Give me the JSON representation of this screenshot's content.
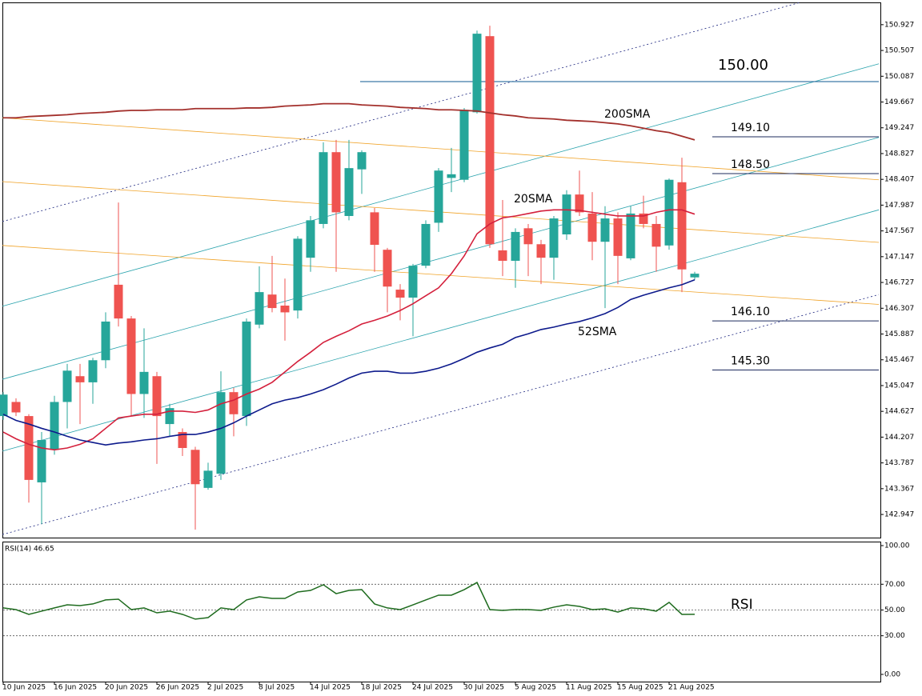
{
  "chart_data": [
    {
      "type": "candlestick",
      "categories": [
        "10 Jun 2025",
        null,
        null,
        null,
        "16 Jun 2025",
        null,
        null,
        null,
        "20 Jun 2025",
        null,
        null,
        null,
        "26 Jun 2025",
        null,
        null,
        null,
        "2 Jul 2025",
        null,
        null,
        null,
        "8 Jul 2025",
        null,
        null,
        null,
        "14 Jul 2025",
        null,
        null,
        null,
        "18 Jul 2025",
        null,
        null,
        null,
        "24 Jul 2025",
        null,
        null,
        null,
        "30 Jul 2025",
        null,
        null,
        null,
        "5 Aug 2025",
        null,
        null,
        null,
        "11 Aug 2025",
        null,
        null,
        null,
        "15 Aug 2025",
        null,
        null,
        null,
        "21 Aug 2025",
        null,
        null
      ],
      "open": [
        144.55,
        144.78,
        144.55,
        143.47,
        144.0,
        144.78,
        145.2,
        145.1,
        145.46,
        146.69,
        146.14,
        144.91,
        145.2,
        144.42,
        144.29,
        144.0,
        143.38,
        143.61,
        144.94,
        144.55,
        146.04,
        146.53,
        146.35,
        146.27,
        147.13,
        147.68,
        148.85,
        147.81,
        148.57,
        147.87,
        147.26,
        146.61,
        146.48,
        147.0,
        147.7,
        148.43,
        148.4,
        149.5,
        150.74,
        147.25,
        147.08,
        147.61,
        147.35,
        147.13,
        147.51,
        148.16,
        147.85,
        147.39,
        147.77,
        147.12,
        147.85,
        147.68,
        147.33,
        148.36,
        146.81
      ],
      "high": [
        144.94,
        144.84,
        144.58,
        144.29,
        144.88,
        145.4,
        145.4,
        145.5,
        146.24,
        148.03,
        146.18,
        145.98,
        145.27,
        144.75,
        144.35,
        144.05,
        143.79,
        145.28,
        145.01,
        146.14,
        146.99,
        147.16,
        146.79,
        147.48,
        147.81,
        149.01,
        149.05,
        149.05,
        148.88,
        147.94,
        147.29,
        146.7,
        147.03,
        147.74,
        148.59,
        148.92,
        149.57,
        150.83,
        150.91,
        148.07,
        147.61,
        147.68,
        147.42,
        147.81,
        148.23,
        148.55,
        148.2,
        147.97,
        147.87,
        147.97,
        148.14,
        147.81,
        148.42,
        148.76,
        146.9
      ],
      "low": [
        144.49,
        144.55,
        143.14,
        142.79,
        143.92,
        144.35,
        144.42,
        144.75,
        145.33,
        146.01,
        144.55,
        144.52,
        143.77,
        144.22,
        143.9,
        142.7,
        143.35,
        143.51,
        144.22,
        144.39,
        145.98,
        146.24,
        145.78,
        146.14,
        146.9,
        147.61,
        146.9,
        147.74,
        148.17,
        146.9,
        146.24,
        146.11,
        145.85,
        146.96,
        147.55,
        148.2,
        148.36,
        149.48,
        147.29,
        146.83,
        146.64,
        146.83,
        146.7,
        146.77,
        147.42,
        147.81,
        147.09,
        146.31,
        146.7,
        147.09,
        147.61,
        146.9,
        147.26,
        146.57,
        146.77
      ],
      "close": [
        144.9,
        144.61,
        143.51,
        144.16,
        144.78,
        145.29,
        145.1,
        145.46,
        146.09,
        146.14,
        144.91,
        145.27,
        144.55,
        144.68,
        144.03,
        143.44,
        143.66,
        144.94,
        144.58,
        146.09,
        146.57,
        146.31,
        146.24,
        147.44,
        147.74,
        148.85,
        147.87,
        148.59,
        148.85,
        147.34,
        146.66,
        146.48,
        147.0,
        147.68,
        148.55,
        148.49,
        149.54,
        150.78,
        147.35,
        147.08,
        147.55,
        147.35,
        147.13,
        147.77,
        148.16,
        147.87,
        147.39,
        147.77,
        147.16,
        147.85,
        147.68,
        147.31,
        148.4,
        146.94,
        146.87
      ],
      "up_color": "#26a69a",
      "down_color": "#ef5350",
      "ylim": [
        142.57,
        151.29
      ],
      "yticks": [
        150.927,
        150.507,
        150.087,
        149.667,
        149.247,
        148.827,
        148.407,
        147.987,
        147.567,
        147.147,
        146.727,
        146.307,
        145.887,
        145.467,
        145.047,
        144.627,
        144.207,
        143.787,
        143.367,
        142.947
      ],
      "overlays": [
        {
          "name": "200SMA",
          "color": "#a3302c",
          "label_color": "#b03a36",
          "values": [
            149.41,
            149.41,
            149.43,
            149.44,
            149.45,
            149.46,
            149.48,
            149.49,
            149.5,
            149.52,
            149.53,
            149.53,
            149.54,
            149.54,
            149.54,
            149.56,
            149.56,
            149.56,
            149.56,
            149.57,
            149.57,
            149.58,
            149.6,
            149.61,
            149.62,
            149.64,
            149.64,
            149.64,
            149.62,
            149.61,
            149.6,
            149.58,
            149.57,
            149.56,
            149.54,
            149.54,
            149.53,
            149.52,
            149.49,
            149.46,
            149.44,
            149.41,
            149.4,
            149.39,
            149.37,
            149.36,
            149.35,
            149.33,
            149.31,
            149.28,
            149.24,
            149.2,
            149.17,
            149.11,
            149.05
          ]
        },
        {
          "name": "20SMA",
          "color": "#d4203c",
          "label_color": "#d8404a",
          "values": [
            144.29,
            144.18,
            144.09,
            144.03,
            144.0,
            144.03,
            144.09,
            144.18,
            144.35,
            144.52,
            144.55,
            144.58,
            144.58,
            144.63,
            144.63,
            144.61,
            144.65,
            144.75,
            144.81,
            144.91,
            144.99,
            145.1,
            145.27,
            145.44,
            145.59,
            145.75,
            145.85,
            145.94,
            146.05,
            146.11,
            146.18,
            146.27,
            146.38,
            146.51,
            146.64,
            146.87,
            147.16,
            147.52,
            147.68,
            147.78,
            147.81,
            147.85,
            147.89,
            147.91,
            147.91,
            147.9,
            147.87,
            147.84,
            147.81,
            147.81,
            147.81,
            147.87,
            147.91,
            147.91,
            147.84
          ]
        },
        {
          "name": "52SMA",
          "color": "#0d1a8c",
          "label_color": "#3a3ac0",
          "values": [
            144.58,
            144.48,
            144.42,
            144.35,
            144.29,
            144.22,
            144.16,
            144.12,
            144.08,
            144.11,
            144.13,
            144.16,
            144.18,
            144.22,
            144.25,
            144.25,
            144.29,
            144.35,
            144.44,
            144.55,
            144.65,
            144.75,
            144.81,
            144.85,
            144.91,
            144.98,
            145.07,
            145.17,
            145.25,
            145.28,
            145.28,
            145.25,
            145.25,
            145.28,
            145.33,
            145.4,
            145.49,
            145.59,
            145.66,
            145.72,
            145.83,
            145.89,
            145.96,
            146.0,
            146.05,
            146.09,
            146.15,
            146.22,
            146.32,
            146.45,
            146.52,
            146.58,
            146.64,
            146.69,
            146.77
          ]
        }
      ],
      "levels": [
        {
          "value": 150,
          "label": "150.00",
          "color": "#3d7aa8"
        },
        {
          "value": 149.1,
          "label": "149.10",
          "color": "#1c2b5e"
        },
        {
          "value": 148.5,
          "label": "148.50",
          "color": "#1c2b5e"
        },
        {
          "value": 146.1,
          "label": "146.10",
          "color": "#1c2b5e"
        },
        {
          "value": 145.3,
          "label": "145.30",
          "color": "#1c2b5e"
        }
      ],
      "trendlines": [
        {
          "x": [
            -0.06,
            62.25
          ],
          "y": [
            147.72,
            151.29
          ],
          "color": "#1a237e",
          "dashed": true
        },
        {
          "x": [
            -0.06,
            68.38
          ],
          "y": [
            142.62,
            146.53
          ],
          "color": "#1a237e",
          "dashed": true
        },
        {
          "x": [
            -0.06,
            68.38
          ],
          "y": [
            146.34,
            150.29
          ],
          "color": "#2aa3ad",
          "dashed": false
        },
        {
          "x": [
            -0.06,
            68.38
          ],
          "y": [
            145.15,
            149.09
          ],
          "color": "#2aa3ad",
          "dashed": false
        },
        {
          "x": [
            -0.06,
            68.38
          ],
          "y": [
            143.98,
            147.91
          ],
          "color": "#2aa3ad",
          "dashed": false
        },
        {
          "x": [
            -0.06,
            68.38
          ],
          "y": [
            149.41,
            148.4
          ],
          "color": "#f0a328",
          "dashed": false
        },
        {
          "x": [
            -0.06,
            68.38
          ],
          "y": [
            148.37,
            147.38
          ],
          "color": "#f0a328",
          "dashed": false
        },
        {
          "x": [
            -0.06,
            68.38
          ],
          "y": [
            147.33,
            146.37
          ],
          "color": "#f0a328",
          "dashed": false
        }
      ]
    },
    {
      "type": "line",
      "title": "RSI(14) 46.65",
      "series": [
        {
          "name": "RSI",
          "color": "#1e6b1e",
          "label_color": "#3a8a3a",
          "values": [
            51.6,
            50.3,
            46.6,
            49.1,
            51.6,
            54.0,
            53.4,
            54.7,
            57.8,
            58.4,
            50.3,
            51.6,
            47.8,
            49.1,
            46.6,
            42.9,
            44.1,
            51.6,
            50.3,
            57.8,
            60.2,
            59.0,
            59.0,
            64.0,
            65.2,
            69.6,
            62.7,
            65.2,
            65.8,
            54.7,
            51.6,
            50.3,
            54.0,
            57.8,
            61.5,
            61.5,
            65.8,
            71.4,
            50.3,
            49.7,
            50.3,
            50.3,
            49.7,
            52.2,
            54.0,
            52.8,
            50.3,
            50.9,
            48.4,
            51.6,
            50.9,
            49.1,
            55.9,
            46.6,
            46.65
          ]
        }
      ],
      "ylim": [
        -5.6,
        103.1
      ],
      "yticks": [
        {
          "value": 100,
          "label": "100.00"
        },
        {
          "value": 70,
          "label": "70.00"
        },
        {
          "value": 50,
          "label": "50.00"
        },
        {
          "value": 30,
          "label": "30.00"
        },
        {
          "value": 0,
          "label": "0.00"
        }
      ],
      "levels": [
        70,
        50,
        30
      ]
    }
  ]
}
